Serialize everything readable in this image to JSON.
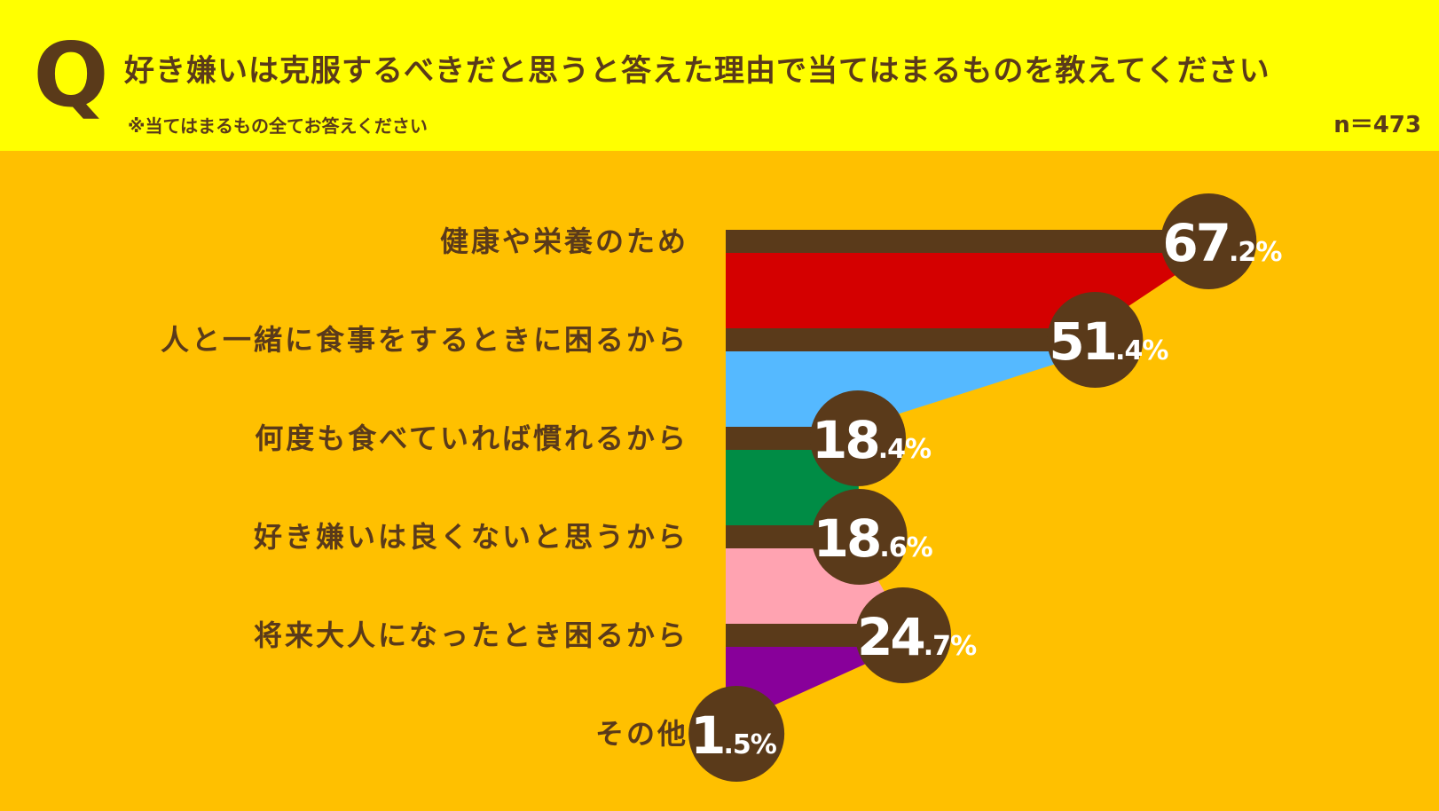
{
  "header": {
    "q_mark": "Q",
    "title": "好き嫌いは克服するべきだと思うと答えた理由で当てはまるものを教えてください",
    "subtitle": "※当てはまるもの全てお答えください",
    "sample_size": "n＝473"
  },
  "colors": {
    "background": "#FFC000",
    "header_background": "#FFFF00",
    "text": "#5A3A1A",
    "bar": "#5A3A1A",
    "bubble": "#5A3A1A",
    "value_text": "#FFFFFF",
    "band_colors": [
      "#D40000",
      "#55B9FF",
      "#008C45",
      "#FFA3B1",
      "#88009A"
    ]
  },
  "chart_data": {
    "type": "bar",
    "orientation": "horizontal",
    "title": "好き嫌いは克服するべきだと思うと答えた理由で当てはまるものを教えてください",
    "unit": "%",
    "categories": [
      "健康や栄養のため",
      "人と一緒に食事をするときに困るから",
      "何度も食べていれば慣れるから",
      "好き嫌いは良くないと思うから",
      "将来大人になったとき困るから",
      "その他"
    ],
    "values": [
      67.2,
      51.4,
      18.4,
      18.6,
      24.7,
      1.5
    ],
    "value_labels": [
      {
        "main": "67",
        "decimal": ".2",
        "unit": "%"
      },
      {
        "main": "51",
        "decimal": ".4",
        "unit": "%"
      },
      {
        "main": "18",
        "decimal": ".4",
        "unit": "%"
      },
      {
        "main": "18",
        "decimal": ".6",
        "unit": "%"
      },
      {
        "main": "24",
        "decimal": ".7",
        "unit": "%"
      },
      {
        "main": "1",
        "decimal": ".5",
        "unit": "%"
      }
    ],
    "xlim": [
      0,
      100
    ],
    "grid": false,
    "legend": "none"
  }
}
